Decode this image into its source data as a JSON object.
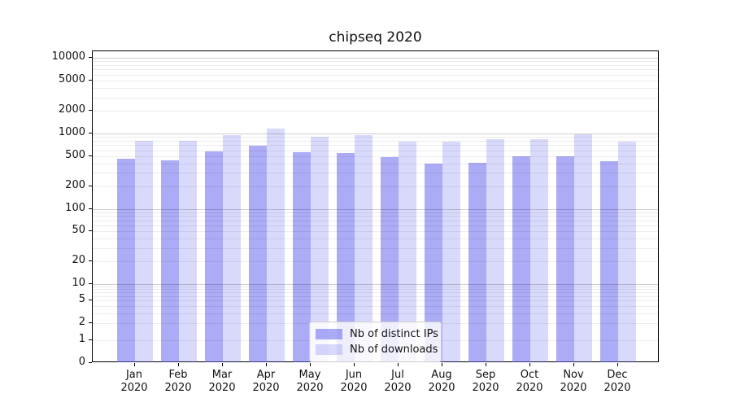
{
  "chart_data": {
    "type": "bar",
    "title": "chipseq 2020",
    "yscale": "symlog",
    "grid": "on",
    "legend_position": "lower center",
    "categories": [
      "Jan\n2020",
      "Feb\n2020",
      "Mar\n2020",
      "Apr\n2020",
      "May\n2020",
      "Jun\n2020",
      "Jul\n2020",
      "Aug\n2020",
      "Sep\n2020",
      "Oct\n2020",
      "Nov\n2020",
      "Dec\n2020"
    ],
    "series": [
      {
        "name": "Nb of distinct IPs",
        "color": "rgba(102,102,238,0.55)",
        "values": [
          460,
          445,
          580,
          690,
          565,
          555,
          480,
          400,
          410,
          500,
          500,
          430
        ]
      },
      {
        "name": "Nb of downloads",
        "color": "rgba(102,102,238,0.25)",
        "values": [
          800,
          800,
          950,
          1170,
          910,
          950,
          780,
          780,
          840,
          840,
          980,
          780
        ]
      }
    ],
    "y_ticks": [
      0,
      1,
      2,
      5,
      10,
      20,
      50,
      100,
      200,
      500,
      1000,
      2000,
      5000,
      10000
    ],
    "y_major_gridlines": [
      10,
      100,
      1000,
      10000
    ],
    "ylim": [
      0,
      13000
    ]
  }
}
